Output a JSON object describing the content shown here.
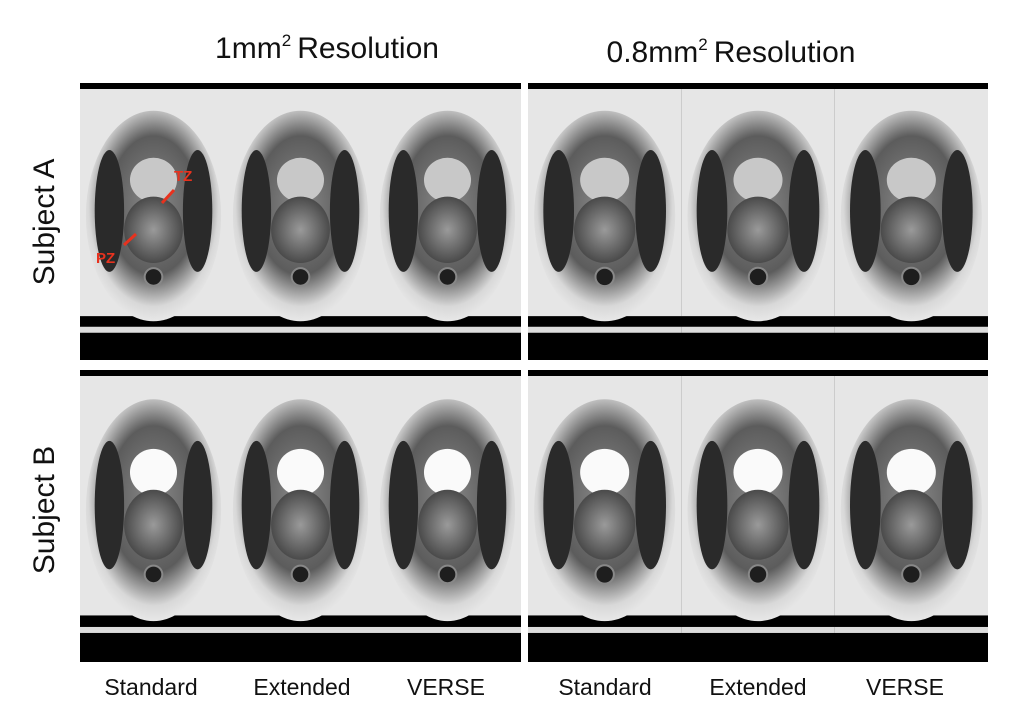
{
  "columns": [
    {
      "label": "1mm",
      "superscript": "2",
      "suffix": "Resolution"
    },
    {
      "label": "0.8mm",
      "superscript": "2",
      "suffix": "Resolution"
    }
  ],
  "rows": [
    "Subject A",
    "Subject B"
  ],
  "annotations": [
    "TZ",
    "PZ"
  ],
  "image_labels": [
    "Standard",
    "Extended",
    "VERSE",
    "Standard",
    "Extended",
    "VERSE"
  ]
}
